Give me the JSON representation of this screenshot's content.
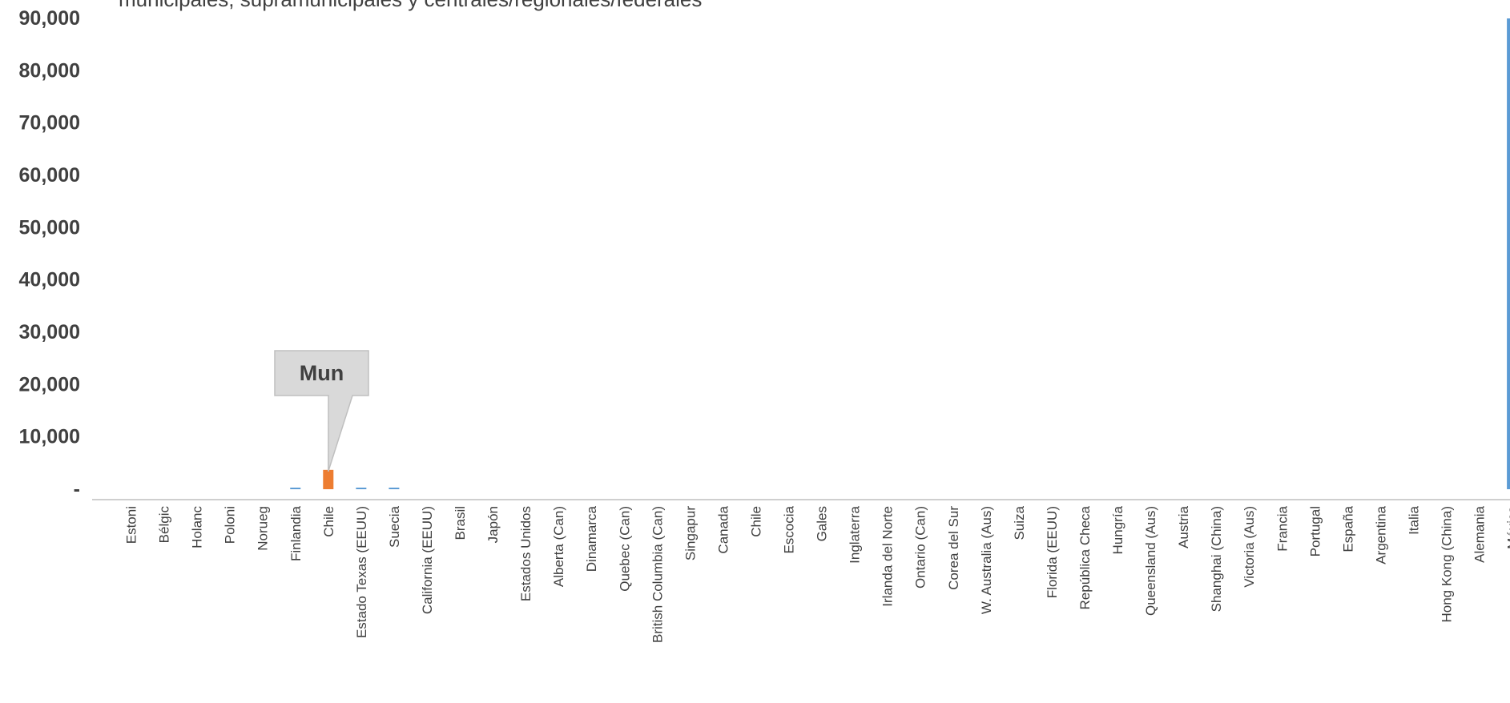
{
  "chart_data": {
    "type": "bar",
    "title": "municipales, supramunicipales y centrales/regionales/federales",
    "xlabel": "",
    "ylabel": "",
    "ylim": [
      0,
      90000
    ],
    "yticks": [
      {
        "value": 90000,
        "label": "90,000"
      },
      {
        "value": 80000,
        "label": "80,000"
      },
      {
        "value": 70000,
        "label": "70,000"
      },
      {
        "value": 60000,
        "label": "60,000"
      },
      {
        "value": 50000,
        "label": "50,000"
      },
      {
        "value": 40000,
        "label": "40,000"
      },
      {
        "value": 30000,
        "label": "30,000"
      },
      {
        "value": 20000,
        "label": "20,000"
      },
      {
        "value": 10000,
        "label": "10,000"
      },
      {
        "value": 0,
        "label": "-"
      }
    ],
    "categories": [
      "Estoni",
      "Bélgic",
      "Holanc",
      "Poloni",
      "Norueg",
      "Finlandia",
      "Chile",
      "Estado Texas (EEUU)",
      "Suecia",
      "California (EEUU)",
      "Brasil",
      "Japón",
      "Estados Unidos",
      "Alberta (Can)",
      "Dinamarca",
      "Quebec (Can)",
      "British Columbia (Can)",
      "Singapur",
      "Canada",
      "Chile",
      "Escocia",
      "Gales",
      "Inglaterra",
      "Irlanda del Norte",
      "Ontario (Can)",
      "Corea del Sur",
      "W. Australia (Aus)",
      "Suiza",
      "Florida (EEUU)",
      "República Checa",
      "Hungría",
      "Queensland (Aus)",
      "Austria",
      "Shanghai (China)",
      "Victoria (Aus)",
      "Francia",
      "Portugal",
      "España",
      "Argentina",
      "Italia",
      "Hong Kong (China)",
      "Alemania",
      "México"
    ],
    "series": [
      {
        "color": "#5b9bd5",
        "values": [
          0,
          0,
          0,
          0,
          0,
          300,
          0,
          300,
          300,
          0,
          0,
          0,
          0,
          0,
          0,
          0,
          0,
          0,
          0,
          0,
          0,
          0,
          0,
          0,
          0,
          0,
          0,
          0,
          0,
          0,
          0,
          0,
          0,
          0,
          0,
          0,
          0,
          0,
          0,
          0,
          0,
          0,
          90000
        ]
      }
    ],
    "highlight": {
      "category_index": 6,
      "color": "#ed7d31",
      "value": 3700
    },
    "callout": {
      "text": "Mun",
      "category_index": 6
    },
    "grid": false,
    "legend": "none"
  }
}
